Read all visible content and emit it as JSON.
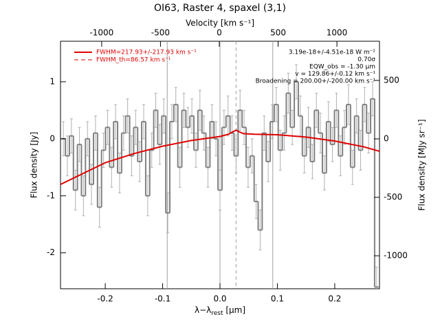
{
  "chart_data": {
    "type": "step",
    "title": "OI63, Raster 4, spaxel (3,1)",
    "x_label": [
      "λ−λ",
      "rest",
      " [μm]"
    ],
    "top_label": "Velocity [km s⁻¹]",
    "y_label": "Flux density [Jy]",
    "y2_label": "Flux density [MJy sr⁻¹]",
    "xlim": [
      -0.278,
      0.278
    ],
    "xticks": [
      -0.2,
      -0.1,
      {
        "value": 0,
        "label": "0.0"
      },
      0.1,
      0.2
    ],
    "ylim": [
      -2.63,
      1.71
    ],
    "yticks": [
      -2,
      -1,
      0,
      1
    ],
    "top_xlim": [
      -1350,
      1362
    ],
    "top_xticks": [
      -1000,
      -500,
      0,
      500,
      1000
    ],
    "y2lim": [
      -1282,
      835
    ],
    "y2ticks": [
      -1000,
      -500,
      0,
      500
    ],
    "vlines": [
      -0.092,
      0,
      0.092
    ],
    "vline_dashed": 0.028,
    "annotations": [
      "3.19e-18+/-4.51e-18 W m⁻²",
      "0.70σ",
      "EQW_obs = -1.30 μm",
      "v = 129.86+/-0.12 km s⁻¹",
      "Broadening = 200.00+/-200.00 km s⁻¹"
    ],
    "legend": [
      {
        "name": "FWHM=217.93+/-217.93 km s⁻¹",
        "color": "#e00000",
        "dash": false
      },
      {
        "name": "FWHM_th=86.57 km s⁻¹",
        "color": "#e00000",
        "dash": true
      }
    ],
    "spectrum": {
      "color": "#808080",
      "err_color": "#b0b0b0",
      "x": [
        -0.273,
        -0.266,
        -0.259,
        -0.252,
        -0.245,
        -0.238,
        -0.231,
        -0.224,
        -0.217,
        -0.21,
        -0.203,
        -0.196,
        -0.189,
        -0.182,
        -0.175,
        -0.168,
        -0.161,
        -0.154,
        -0.147,
        -0.14,
        -0.133,
        -0.126,
        -0.119,
        -0.112,
        -0.105,
        -0.098,
        -0.091,
        -0.084,
        -0.077,
        -0.07,
        -0.063,
        -0.056,
        -0.049,
        -0.042,
        -0.035,
        -0.028,
        -0.021,
        -0.014,
        -0.007,
        0,
        0.007,
        0.014,
        0.021,
        0.028,
        0.035,
        0.042,
        0.049,
        0.056,
        0.063,
        0.07,
        0.077,
        0.084,
        0.091,
        0.098,
        0.105,
        0.112,
        0.119,
        0.126,
        0.133,
        0.14,
        0.147,
        0.154,
        0.161,
        0.168,
        0.175,
        0.182,
        0.189,
        0.196,
        0.203,
        0.21,
        0.217,
        0.224,
        0.231,
        0.238,
        0.245,
        0.252,
        0.259,
        0.266,
        0.273
      ],
      "values": [
        0.0,
        -0.3,
        0.05,
        -0.9,
        -0.1,
        -1.0,
        0.0,
        -0.8,
        0.1,
        -1.2,
        -0.2,
        0.2,
        -0.5,
        0.3,
        -0.6,
        0.1,
        0.4,
        -0.3,
        0.2,
        -0.4,
        0.3,
        -1.0,
        -0.2,
        0.5,
        -0.1,
        0.4,
        -1.3,
        0.3,
        0.6,
        -0.5,
        0.5,
        0.2,
        0.4,
        -0.2,
        0.5,
        0.1,
        -0.5,
        0.3,
        0.0,
        -0.9,
        0.2,
        0.4,
        0.1,
        -0.3,
        0.5,
        0.2,
        -0.5,
        -0.3,
        -1.1,
        -1.6,
        0.1,
        -0.4,
        0.3,
        0.6,
        -0.2,
        0.1,
        0.8,
        0.2,
        1.0,
        0.4,
        -0.3,
        0.2,
        -0.4,
        0.5,
        0.1,
        -0.6,
        0.3,
        -0.1,
        0.5,
        -0.3,
        0.2,
        0.6,
        -0.5,
        0.4,
        -0.2,
        0.6,
        0.1,
        0.7,
        -2.6
      ],
      "errors": [
        0.3,
        0.35,
        0.3,
        0.35,
        0.3,
        0.35,
        0.3,
        0.35,
        0.3,
        0.35,
        0.3,
        0.3,
        0.35,
        0.3,
        0.35,
        0.3,
        0.3,
        0.35,
        0.3,
        0.35,
        0.3,
        0.35,
        0.3,
        0.3,
        0.35,
        0.3,
        0.35,
        0.3,
        0.3,
        0.35,
        0.3,
        0.35,
        0.3,
        0.3,
        0.35,
        0.3,
        0.35,
        0.3,
        0.3,
        0.35,
        0.3,
        0.35,
        0.3,
        0.3,
        0.35,
        0.3,
        0.35,
        0.3,
        0.3,
        0.35,
        0.3,
        0.35,
        0.3,
        0.3,
        0.35,
        0.3,
        0.35,
        0.3,
        0.3,
        0.35,
        0.3,
        0.35,
        0.3,
        0.3,
        0.35,
        0.3,
        0.35,
        0.3,
        0.3,
        0.35,
        0.3,
        0.35,
        0.3,
        0.3,
        0.35,
        0.3,
        0.35,
        0.3,
        0.35
      ]
    },
    "fit": {
      "color": "#e00000",
      "x": [
        -0.278,
        -0.2,
        -0.15,
        -0.1,
        -0.05,
        0,
        0.015,
        0.022,
        0.028,
        0.034,
        0.041,
        0.06,
        0.1,
        0.15,
        0.2,
        0.25,
        0.278
      ],
      "values": [
        -0.8,
        -0.42,
        -0.26,
        -0.13,
        -0.03,
        0.04,
        0.08,
        0.12,
        0.15,
        0.12,
        0.09,
        0.08,
        0.07,
        0.03,
        -0.04,
        -0.14,
        -0.22
      ]
    }
  }
}
